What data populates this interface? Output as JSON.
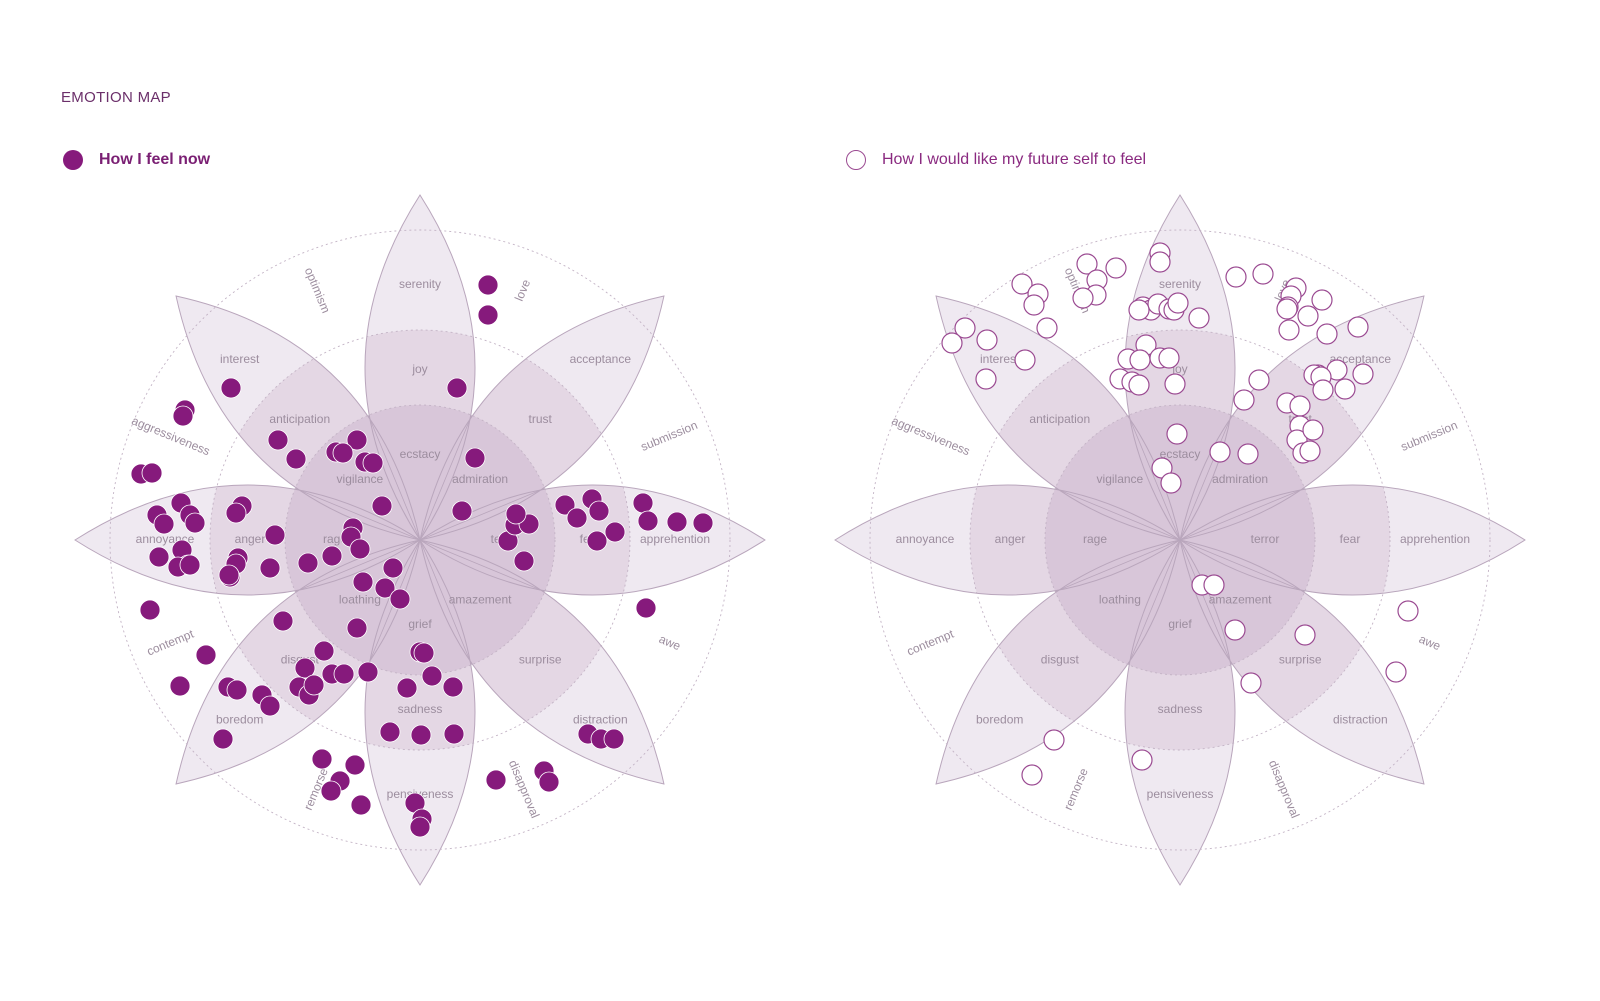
{
  "page": {
    "title": "EMOTION MAP"
  },
  "legend": {
    "now": {
      "label": "How I feel now",
      "color": "#861a7c"
    },
    "future": {
      "label": "How I would like my future self to feel",
      "stroke": "#9b4b92"
    }
  },
  "wheel": {
    "petals": [
      {
        "outer": "serenity",
        "middle": "joy",
        "inner": "ecstacy"
      },
      {
        "outer": "acceptance",
        "middle": "trust",
        "inner": "admiration"
      },
      {
        "outer": "apprehention",
        "middle": "fear",
        "inner": "terror"
      },
      {
        "outer": "distraction",
        "middle": "surprise",
        "inner": "amazement"
      },
      {
        "outer": "pensiveness",
        "middle": "sadness",
        "inner": "grief"
      },
      {
        "outer": "boredom",
        "middle": "disgust",
        "inner": "loathing"
      },
      {
        "outer": "annoyance",
        "middle": "anger",
        "inner": "rage"
      },
      {
        "outer": "interest",
        "middle": "anticipation",
        "inner": "vigilance"
      }
    ],
    "dyads": [
      "love",
      "submission",
      "awe",
      "disapproval",
      "remorse",
      "contempt",
      "aggressiveness",
      "optimism"
    ]
  },
  "colors": {
    "petal_outer": "#efe9f1",
    "petal_mid": "#e4d7e4",
    "petal_inner": "#d8c6d9",
    "petal_stroke": "#b9a6bc",
    "ring_stroke": "#c3b3c5",
    "label": "#9c8d9e",
    "dot_fill": "#861a7c",
    "dot_stroke": "#9b4b92"
  }
}
